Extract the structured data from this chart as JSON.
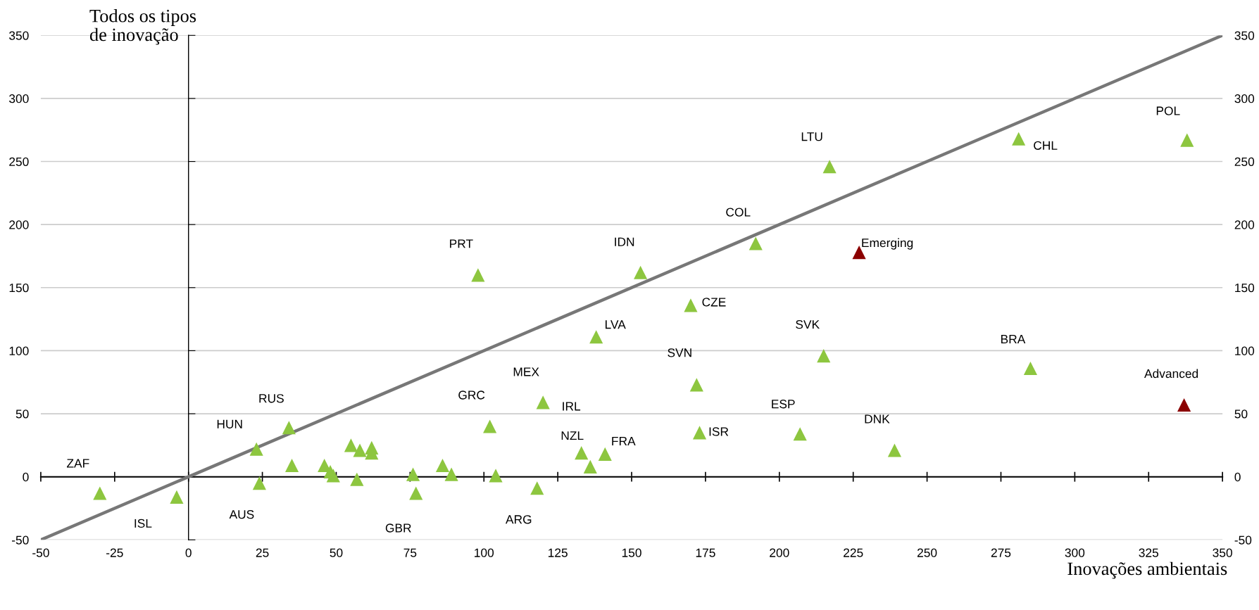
{
  "chart_data": {
    "type": "scatter",
    "xlabel": "Inovações ambientais",
    "ylabel": "Todos os tipos de inovação",
    "xlim": [
      -50,
      350
    ],
    "xticks": [
      -50,
      -25,
      0,
      25,
      50,
      75,
      100,
      125,
      150,
      175,
      200,
      225,
      250,
      275,
      300,
      325,
      350
    ],
    "ylim": [
      -50,
      350
    ],
    "yticks": [
      -50,
      0,
      50,
      100,
      150,
      200,
      250,
      300,
      350
    ],
    "y2lim": [
      -50,
      350
    ],
    "y2ticks": [
      -50,
      0,
      50,
      100,
      150,
      200,
      250,
      300,
      350
    ],
    "grid": "y",
    "marker": "triangle",
    "series": [
      {
        "color": "#8dc63f",
        "x": [
          -30,
          -4,
          23,
          34,
          24,
          35,
          46,
          48,
          49,
          55,
          58,
          62,
          62,
          57,
          76,
          77,
          86,
          89,
          102,
          104,
          118,
          120,
          133,
          136,
          141,
          98,
          153,
          138,
          170,
          172,
          173,
          207,
          215,
          192,
          217,
          239,
          281,
          285,
          338
        ],
        "values": [
          -13,
          -16,
          22,
          39,
          -5,
          9,
          9,
          4,
          1,
          25,
          21,
          19,
          23,
          -2,
          2,
          -13,
          9,
          2,
          40,
          1,
          -9,
          59,
          19,
          8,
          18,
          160,
          162,
          111,
          136,
          73,
          35,
          34,
          96,
          185,
          246,
          21,
          268,
          86,
          267
        ]
      },
      {
        "color": "#8b0000",
        "x": [
          227,
          337
        ],
        "values": [
          178,
          57
        ]
      },
      {
        "type": "line",
        "color": "#777777",
        "marker": "none",
        "x": [
          -50,
          350
        ],
        "values": [
          -50,
          350
        ]
      }
    ],
    "annotations": [
      {
        "text": "ZAF",
        "x": -30,
        "y": -13
      },
      {
        "text": "ISL",
        "x": -4,
        "y": -16
      },
      {
        "text": "HUN",
        "x": 23,
        "y": 22
      },
      {
        "text": "RUS",
        "x": 34,
        "y": 39
      },
      {
        "text": "AUS",
        "x": 24,
        "y": -5
      },
      {
        "text": "GBR",
        "x": 77,
        "y": -13
      },
      {
        "text": "GRC",
        "x": 102,
        "y": 40
      },
      {
        "text": "ARG",
        "x": 118,
        "y": -9
      },
      {
        "text": "MEX",
        "x": 120,
        "y": 59
      },
      {
        "text": "IRL",
        "x": 120,
        "y": 59
      },
      {
        "text": "NZL",
        "x": 133,
        "y": 19
      },
      {
        "text": "FRA",
        "x": 141,
        "y": 18
      },
      {
        "text": "PRT",
        "x": 98,
        "y": 160
      },
      {
        "text": "IDN",
        "x": 153,
        "y": 162
      },
      {
        "text": "LVA",
        "x": 138,
        "y": 111
      },
      {
        "text": "CZE",
        "x": 170,
        "y": 136
      },
      {
        "text": "SVN",
        "x": 172,
        "y": 73
      },
      {
        "text": "ISR",
        "x": 173,
        "y": 35
      },
      {
        "text": "ESP",
        "x": 207,
        "y": 34
      },
      {
        "text": "SVK",
        "x": 215,
        "y": 96
      },
      {
        "text": "COL",
        "x": 192,
        "y": 185
      },
      {
        "text": "LTU",
        "x": 217,
        "y": 246
      },
      {
        "text": "DNK",
        "x": 239,
        "y": 21
      },
      {
        "text": "CHL",
        "x": 281,
        "y": 268
      },
      {
        "text": "BRA",
        "x": 285,
        "y": 86
      },
      {
        "text": "POL",
        "x": 338,
        "y": 267
      },
      {
        "text": "Emerging",
        "x": 227,
        "y": 178
      },
      {
        "text": "Advanced",
        "x": 337,
        "y": 57
      }
    ]
  }
}
